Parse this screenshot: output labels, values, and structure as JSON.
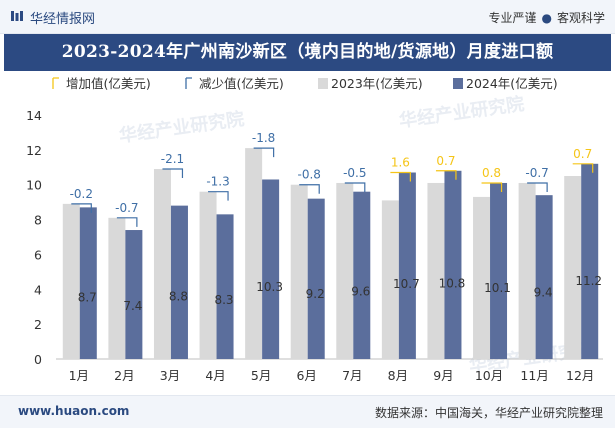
{
  "header": {
    "brand": "华经情报网",
    "slogan_left": "专业严谨",
    "slogan_right": "客观科学"
  },
  "title": "2023-2024年广州南沙新区（境内目的地/货源地）月度进口额",
  "footer": {
    "url": "www.huaon.com",
    "source": "数据来源：中国海关，华经产业研究院整理"
  },
  "watermark": "华经产业研究院",
  "watermark_url": "www.huaon.com",
  "colors": {
    "bar2023": "#d9d9d9",
    "bar2024": "#5b6e9c",
    "increase": "#f5c518",
    "decrease": "#3f6fa6",
    "brand": "#2c4a82"
  },
  "chart_data": {
    "type": "bar",
    "categories": [
      "1月",
      "2月",
      "3月",
      "4月",
      "5月",
      "6月",
      "7月",
      "8月",
      "9月",
      "10月",
      "11月",
      "12月"
    ],
    "series": [
      {
        "name": "2023年(亿美元)",
        "values": [
          8.9,
          8.1,
          10.9,
          9.6,
          12.1,
          10.0,
          10.1,
          9.1,
          10.1,
          9.3,
          10.1,
          10.5
        ]
      },
      {
        "name": "2024年(亿美元)",
        "values": [
          8.7,
          7.4,
          8.8,
          8.3,
          10.3,
          9.2,
          9.6,
          10.7,
          10.8,
          10.1,
          9.4,
          11.2
        ]
      }
    ],
    "change": [
      -0.2,
      -0.7,
      -2.1,
      -1.3,
      -1.8,
      -0.8,
      -0.5,
      1.6,
      0.7,
      0.8,
      -0.7,
      0.7
    ],
    "change_labels": [
      "-0.2",
      "-0.7",
      "-2.1",
      "-1.3",
      "-1.8",
      "-0.8",
      "-0.5",
      "1.6",
      "0.7",
      "0.8",
      "-0.7",
      "0.7"
    ],
    "value_labels_2024": [
      "8.7",
      "7.4",
      "8.8",
      "8.3",
      "10.3",
      "9.2",
      "9.6",
      "10.7",
      "10.8",
      "10.1",
      "9.4",
      "11.2"
    ],
    "legend": [
      "增加值(亿美元)",
      "减少值(亿美元)",
      "2023年(亿美元)",
      "2024年(亿美元)"
    ],
    "legend_position": "top",
    "ylim": [
      0,
      14
    ],
    "yticks": [
      0,
      2,
      4,
      6,
      8,
      10,
      12,
      14
    ],
    "grid": false
  }
}
